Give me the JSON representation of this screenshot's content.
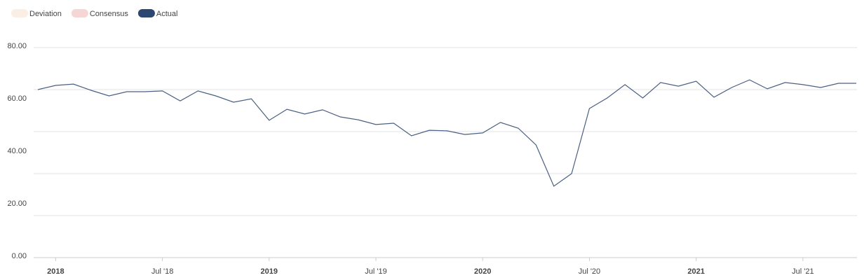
{
  "chart_data": {
    "type": "line",
    "legend": [
      {
        "name": "Deviation",
        "color": "#fbeee4"
      },
      {
        "name": "Consensus",
        "color": "#f5d6d4"
      },
      {
        "name": "Actual",
        "color": "#2c4770"
      }
    ],
    "categories": [
      null,
      "2018",
      null,
      null,
      null,
      null,
      null,
      "Jul '18",
      null,
      null,
      null,
      null,
      null,
      "2019",
      null,
      null,
      null,
      null,
      null,
      "Jul '19",
      null,
      null,
      null,
      null,
      null,
      "2020",
      null,
      null,
      null,
      null,
      null,
      "Jul '20",
      null,
      null,
      null,
      null,
      null,
      "2021",
      null,
      null,
      null,
      null,
      null,
      "Jul '21",
      null,
      null,
      null
    ],
    "bold_categories": [
      "2018",
      "2019",
      "2020",
      "2021"
    ],
    "series": [
      {
        "name": "Actual",
        "color": "#4a5f82",
        "values": [
          64.0,
          65.6,
          66.1,
          63.7,
          61.6,
          63.2,
          63.2,
          63.5,
          59.7,
          63.5,
          61.6,
          59.2,
          60.5,
          52.3,
          56.5,
          54.7,
          56.3,
          53.6,
          52.5,
          50.7,
          51.2,
          46.4,
          48.5,
          48.3,
          46.9,
          47.5,
          51.5,
          49.3,
          42.9,
          27.2,
          32.0,
          56.8,
          60.8,
          65.9,
          60.8,
          66.7,
          65.3,
          67.2,
          61.1,
          64.8,
          67.7,
          64.3,
          66.7,
          65.9,
          64.8,
          66.4,
          66.4
        ]
      }
    ],
    "ylim": [
      0,
      80
    ],
    "yticks": [
      {
        "value": 0,
        "label": "0.00"
      },
      {
        "value": 20,
        "label": "20.00"
      },
      {
        "value": 40,
        "label": "40.00"
      },
      {
        "value": 60,
        "label": "60.00"
      },
      {
        "value": 80,
        "label": "80.00"
      }
    ],
    "ygrid": [
      0,
      16,
      32,
      48,
      64,
      80
    ],
    "grid": true
  }
}
